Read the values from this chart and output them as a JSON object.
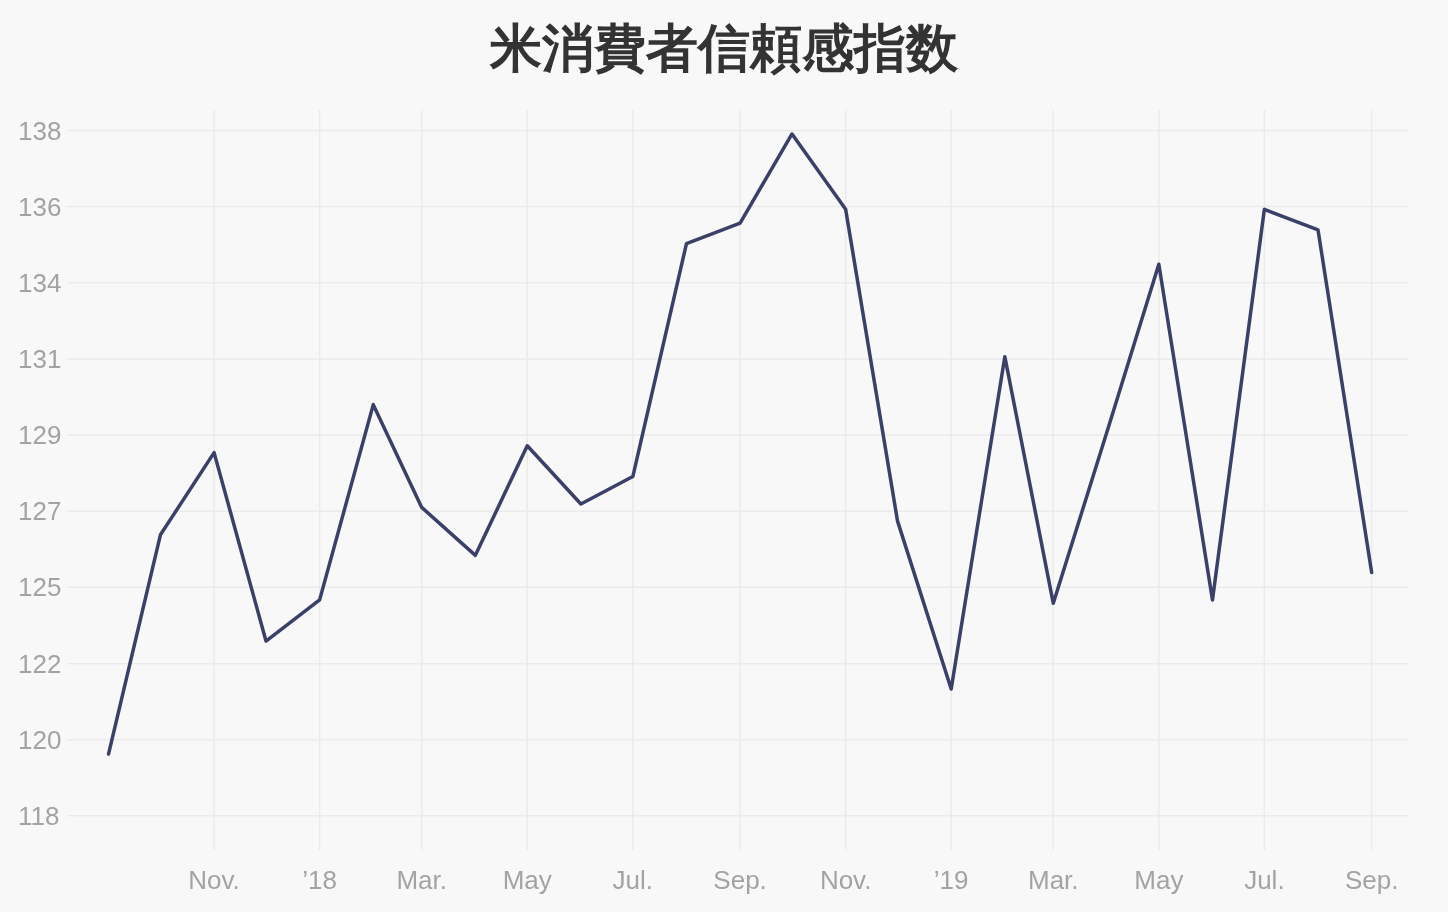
{
  "chart_data": {
    "type": "line",
    "title": "米消費者信頼感指数",
    "color": "#3b4069",
    "x": [
      "2017-09",
      "2017-10",
      "2017-11",
      "2017-12",
      "2018-01",
      "2018-02",
      "2018-03",
      "2018-04",
      "2018-05",
      "2018-06",
      "2018-07",
      "2018-08",
      "2018-09",
      "2018-10",
      "2018-11",
      "2018-12",
      "2019-01",
      "2019-02",
      "2019-03",
      "2019-04",
      "2019-05",
      "2019-06",
      "2019-07",
      "2019-08",
      "2019-09"
    ],
    "values": [
      119.8,
      126.2,
      128.6,
      123.1,
      124.3,
      130.0,
      127.0,
      125.6,
      128.8,
      127.1,
      127.9,
      134.7,
      135.3,
      137.9,
      135.7,
      126.6,
      121.7,
      131.4,
      124.2,
      129.2,
      134.1,
      124.3,
      135.7,
      135.1,
      125.1
    ],
    "xlim": [
      "2017-08-08",
      "2019-09-22"
    ],
    "ylim": [
      117.0,
      138.6
    ],
    "xticks": [
      {
        "value": "2017-11",
        "label": "Nov."
      },
      {
        "value": "2018-01",
        "label": "’18"
      },
      {
        "value": "2018-03",
        "label": "Mar."
      },
      {
        "value": "2018-05",
        "label": "May"
      },
      {
        "value": "2018-07",
        "label": "Jul."
      },
      {
        "value": "2018-09",
        "label": "Sep."
      },
      {
        "value": "2018-11",
        "label": "Nov."
      },
      {
        "value": "2019-01",
        "label": "’19"
      },
      {
        "value": "2019-03",
        "label": "Mar."
      },
      {
        "value": "2019-05",
        "label": "May"
      },
      {
        "value": "2019-07",
        "label": "Jul."
      },
      {
        "value": "2019-09",
        "label": "Sep."
      }
    ],
    "yticks": [
      118,
      {
        "value": 120.22,
        "label": "120"
      },
      {
        "value": 122.44,
        "label": "122"
      },
      {
        "value": 124.67,
        "label": "125"
      },
      {
        "value": 126.89,
        "label": "127"
      },
      {
        "value": 129.11,
        "label": "129"
      },
      {
        "value": 131.33,
        "label": "131"
      },
      {
        "value": 133.56,
        "label": "134"
      },
      {
        "value": 135.78,
        "label": "136"
      },
      138
    ],
    "grid": true
  }
}
